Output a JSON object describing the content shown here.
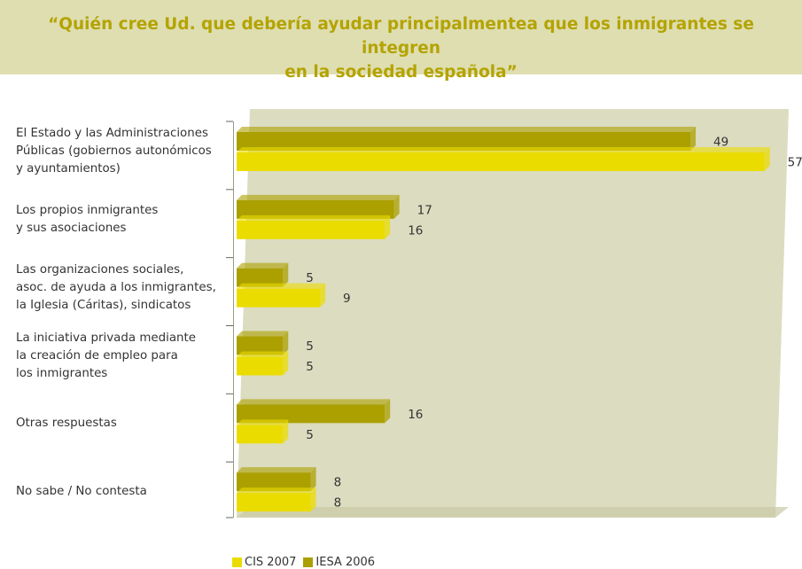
{
  "header": {
    "title_line1": "“Quién cree Ud. que debería ayudar principalmentea que los inmigrantes se integren",
    "title_line2": "en la sociedad española”"
  },
  "colors": {
    "title_band": "#dedeb1",
    "title_text": "#b4a300",
    "plot_back": "#dcdcc0",
    "plot_floor": "#c9c9a6",
    "cis": "#ebdc00",
    "iesa": "#aba000"
  },
  "chart_data": {
    "type": "bar",
    "orientation": "horizontal",
    "categories": [
      "El Estado y las Administraciones\nPúblicas (gobiernos autonómicos\ny ayuntamientos)",
      "Los propios inmigrantes\ny sus asociaciones",
      "Las organizaciones sociales,\nasoc. de ayuda a los inmigrantes,\nla Iglesia (Cáritas), sindicatos",
      "La iniciativa privada mediante\nla creación de empleo para\nlos inmigrantes",
      "Otras respuestas",
      "No sabe / No contesta"
    ],
    "series": [
      {
        "name": "IESA 2006",
        "color": "#aba000",
        "values": [
          49,
          17,
          5,
          5,
          16,
          8
        ]
      },
      {
        "name": "CIS 2007",
        "color": "#ebdc00",
        "values": [
          57,
          16,
          9,
          5,
          5,
          8
        ]
      }
    ],
    "xlim": [
      0,
      60
    ],
    "grid": false,
    "legend_position": "bottom",
    "legend": [
      "CIS 2007",
      "IESA 2006"
    ]
  }
}
